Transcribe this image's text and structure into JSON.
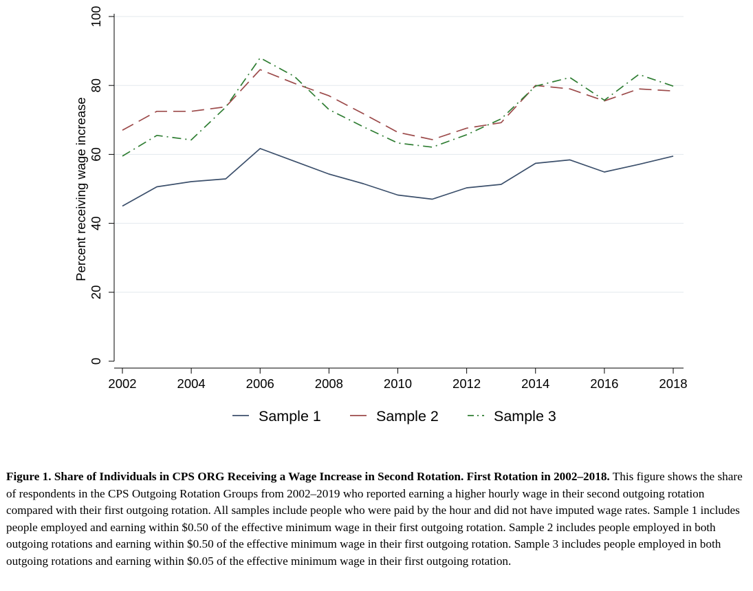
{
  "chart_data": {
    "type": "line",
    "ylabel": "Percent receiving wage increase",
    "xlabel": "",
    "xlim": [
      2002,
      2018
    ],
    "ylim": [
      0,
      100
    ],
    "xticks": [
      "2002",
      "2004",
      "2006",
      "2008",
      "2010",
      "2012",
      "2014",
      "2016",
      "2018"
    ],
    "yticks": [
      "0",
      "20",
      "40",
      "60",
      "80",
      "100"
    ],
    "grid": true,
    "legend_position": "bottom",
    "x": [
      2002,
      2003,
      2004,
      2005,
      2006,
      2007,
      2008,
      2009,
      2010,
      2011,
      2012,
      2013,
      2014,
      2015,
      2016,
      2017,
      2018
    ],
    "series": [
      {
        "name": "Sample 1",
        "color": "#3b4f6b",
        "dash": "solid",
        "values": [
          45.0,
          50.6,
          52.1,
          52.9,
          61.7,
          58.0,
          54.3,
          51.5,
          48.2,
          47.0,
          50.3,
          51.3,
          57.4,
          58.4,
          54.9,
          57.1,
          59.5
        ]
      },
      {
        "name": "Sample 2",
        "color": "#9c4a4a",
        "dash": "long-dash",
        "values": [
          67.0,
          72.5,
          72.5,
          73.8,
          84.6,
          80.6,
          77.0,
          71.8,
          66.4,
          64.3,
          67.6,
          69.2,
          80.0,
          79.0,
          75.5,
          79.0,
          78.4
        ]
      },
      {
        "name": "Sample 3",
        "color": "#2e7d32",
        "dash": "dash-dot",
        "values": [
          59.5,
          65.5,
          64.2,
          73.7,
          88.0,
          82.6,
          73.0,
          68.0,
          63.3,
          62.1,
          65.7,
          70.3,
          79.8,
          82.3,
          75.7,
          83.2,
          79.8
        ]
      }
    ]
  },
  "caption": {
    "label": "Figure 1. Share of Individuals in CPS ORG Receiving a Wage Increase in Second Rotation. First Rotation in 2002–2018.",
    "text": " This figure shows the share of respondents in the CPS Outgoing Rotation Groups from 2002–2019 who reported earning a higher hourly wage in their second outgoing rotation compared with their first outgoing rotation. All samples include people who were paid by the hour and did not have imputed wage rates. Sample 1 includes people employed and earning within $0.50 of the effective minimum wage in their first outgoing rotation. Sample 2 includes people employed in both outgoing rotations and earning within $0.50 of the effective minimum wage in their first outgoing rotation. Sample 3 includes people employed in both outgoing rotations and earning within $0.05 of the effective minimum wage in their first outgoing rotation."
  }
}
